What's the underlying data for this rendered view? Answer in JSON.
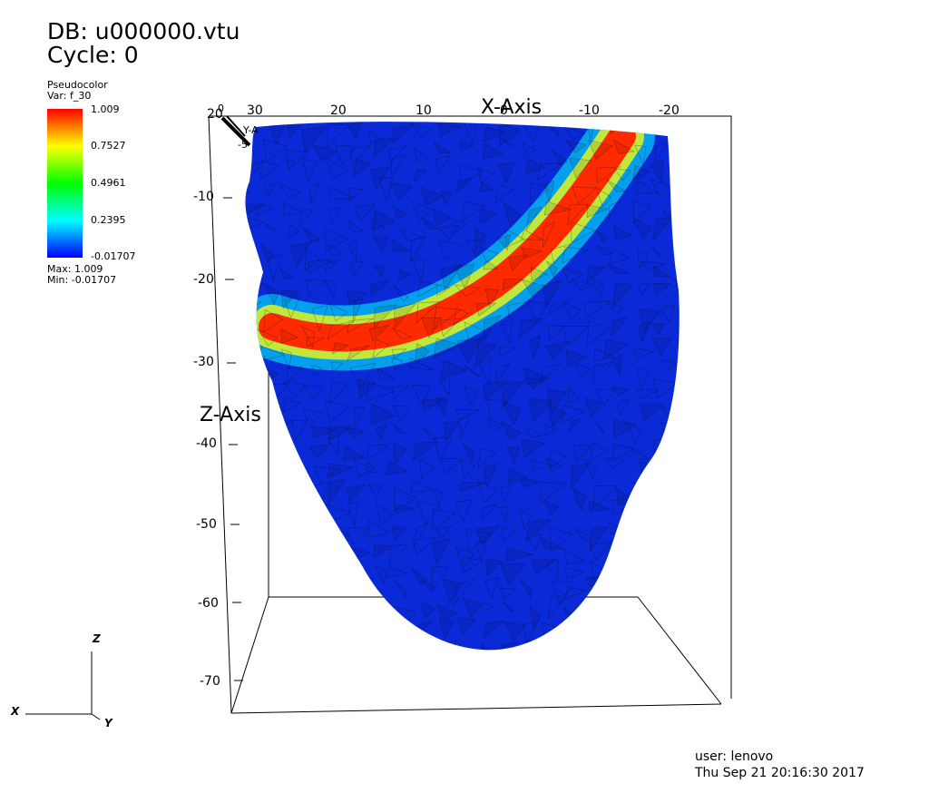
{
  "header": {
    "db_label": "DB: u000000.vtu",
    "cycle_label": "Cycle: 0"
  },
  "legend": {
    "plot_type": "Pseudocolor",
    "var_label": "Var: f_30",
    "ticks": [
      "1.009",
      "0.7527",
      "0.4961",
      "0.2395",
      "-0.01707"
    ],
    "max_label": "Max:  1.009",
    "min_label": "Min: -0.01707",
    "colormap": [
      "#ff0000",
      "#ffff00",
      "#00ff00",
      "#00ffff",
      "#0000ff"
    ]
  },
  "axes": {
    "x_title": "X-Axis",
    "z_title": "Z-Axis",
    "x_ticks": [
      "30",
      "20",
      "10",
      "0",
      "-10",
      "-20"
    ],
    "z_ticks": [
      "-10",
      "-20",
      "-30",
      "-40",
      "-50",
      "-60",
      "-70"
    ],
    "corner_clutter": [
      "20",
      "0",
      "Y-A",
      "-5"
    ]
  },
  "triad": {
    "x": "X",
    "y": "Y",
    "z": "Z"
  },
  "footer": {
    "user": "user: lenovo",
    "timestamp": "Thu Sep 21 20:16:30 2017"
  },
  "mesh": {
    "base_color": "#0a2ad8",
    "band_colors": [
      "#ff0000",
      "#ffff00",
      "#00ffff"
    ]
  }
}
